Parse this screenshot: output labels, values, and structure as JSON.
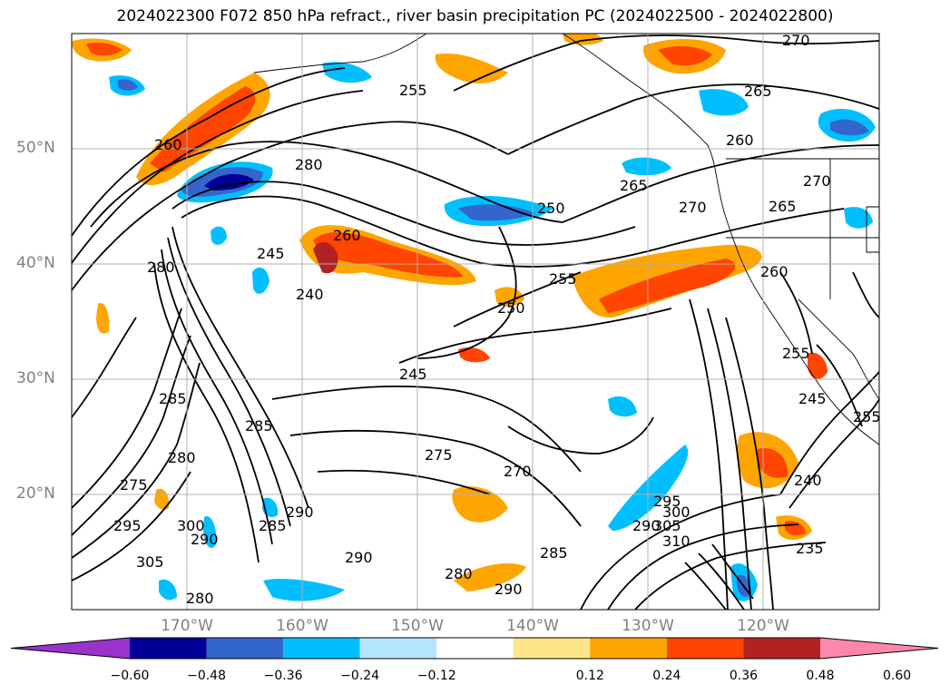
{
  "title": "2024022300 F072 850 hPa refract., river basin precipitation PC (2024022500 - 2024022800)",
  "map": {
    "lat_labels": [
      "50°N",
      "40°N",
      "30°N",
      "20°N"
    ],
    "lon_labels": [
      "170°W",
      "160°W",
      "150°W",
      "140°W",
      "130°W",
      "120°W"
    ],
    "contour_labels": [
      "270",
      "265",
      "255",
      "260",
      "280",
      "250",
      "265",
      "270",
      "265",
      "270",
      "260",
      "245",
      "240",
      "260",
      "255",
      "250",
      "260",
      "255",
      "245",
      "285",
      "275",
      "280",
      "275",
      "270",
      "285",
      "280",
      "290",
      "290",
      "295",
      "300",
      "305",
      "310",
      "290",
      "285",
      "290",
      "280",
      "285",
      "280",
      "305",
      "300",
      "290",
      "295",
      "235",
      "245",
      "255",
      "240"
    ]
  },
  "colorbar": {
    "ticks": [
      "−0.60",
      "−0.48",
      "−0.36",
      "−0.24",
      "−0.12",
      "0.12",
      "0.24",
      "0.36",
      "0.48",
      "0.60"
    ],
    "colors": [
      "#9933cc",
      "#000099",
      "#3366cc",
      "#00bfff",
      "#b3e5fc",
      "#ffffff",
      "#fde68a",
      "#ffa500",
      "#ff4500",
      "#b22222",
      "#ff88aa"
    ]
  }
}
